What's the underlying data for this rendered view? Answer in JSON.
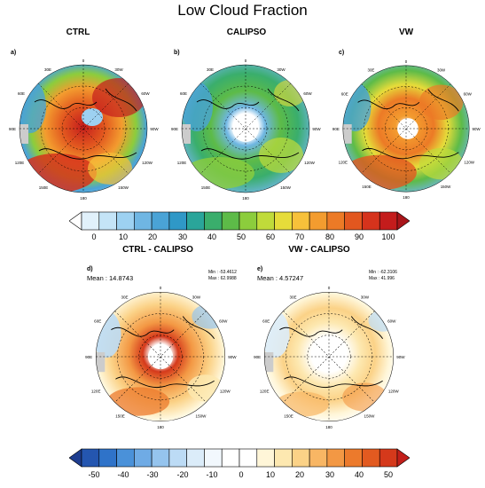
{
  "figure": {
    "title": "Low Cloud Fraction"
  },
  "top_row": {
    "panels": [
      {
        "id": "a",
        "label": "a)",
        "title": "CTRL"
      },
      {
        "id": "b",
        "label": "b)",
        "title": "CALIPSO"
      },
      {
        "id": "c",
        "label": "c)",
        "title": "VW"
      }
    ]
  },
  "bottom_row": {
    "panels": [
      {
        "id": "d",
        "label": "d)",
        "title": "CTRL - CALIPSO",
        "mean": "Mean : 14.8743",
        "min": "Min : -53.4612",
        "max": "Max : 62.9988"
      },
      {
        "id": "e",
        "label": "e)",
        "title": "VW - CALIPSO",
        "mean": "Mean : 4.57247",
        "min": "Min : -62.3106",
        "max": "Max : 41.996"
      }
    ]
  },
  "map_labels": {
    "lon": [
      "0",
      "30E",
      "60E",
      "90E",
      "120E",
      "150E",
      "180",
      "150W",
      "120W",
      "90W",
      "60W",
      "30W"
    ]
  },
  "colorbar_top": {
    "ticks": [
      "0",
      "10",
      "20",
      "30",
      "40",
      "50",
      "60",
      "70",
      "80",
      "90",
      "100"
    ],
    "colors": [
      "#ffffff",
      "#e1f1fb",
      "#c4e4f7",
      "#9dd1f1",
      "#6fb6e3",
      "#4aa3d6",
      "#2f98c7",
      "#2aa59a",
      "#3aae6c",
      "#5dbb48",
      "#8ccd3c",
      "#c0db3a",
      "#e6dc3a",
      "#f7c13a",
      "#f39c2f",
      "#ec7a26",
      "#e2571f",
      "#d6331c",
      "#c41c1c",
      "#a8151a"
    ]
  },
  "colorbar_bottom": {
    "ticks": [
      "-50",
      "-40",
      "-30",
      "-20",
      "-10",
      "0",
      "10",
      "20",
      "30",
      "40",
      "50"
    ],
    "colors": [
      "#1e3d8f",
      "#2456b0",
      "#2f73c9",
      "#4a91d9",
      "#6fabe5",
      "#95c4ee",
      "#bcdbf5",
      "#dbecf9",
      "#f2f8fd",
      "#ffffff",
      "#ffffff",
      "#fff6d8",
      "#fde8b0",
      "#fbd287",
      "#f8b664",
      "#f39844",
      "#ec7a2c",
      "#e25a20",
      "#d5391b",
      "#c21f1a"
    ]
  }
}
